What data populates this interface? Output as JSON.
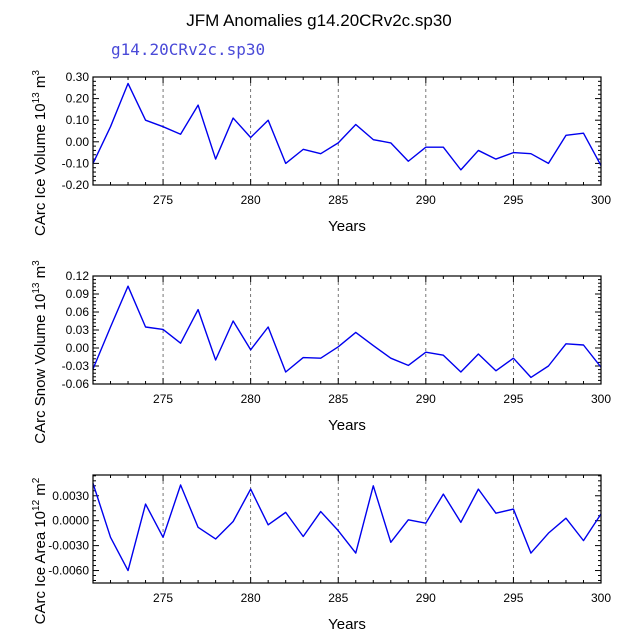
{
  "title": "JFM Anomalies g14.20CRv2c.sp30",
  "subtitle": "g14.20CRv2c.sp30",
  "colors": {
    "line": "#0000ee",
    "subtitle": "#4a4ad8",
    "axis": "#000000",
    "grid": "#555555"
  },
  "chart_data": [
    {
      "type": "line",
      "title": "",
      "xlabel": "Years",
      "ylabel": "CArc Ice Volume 10^13 m^3",
      "ylabel_parts": {
        "main": "CArc Ice Volume 10",
        "exp1": "13",
        "unit": " m",
        "exp2": "3"
      },
      "xlim": [
        271,
        300
      ],
      "ylim": [
        -0.2,
        0.3
      ],
      "yticks": [
        0.3,
        0.2,
        0.1,
        0.0,
        -0.1,
        -0.2
      ],
      "ytick_labels": [
        "0.30",
        "0.20",
        "0.10",
        "0.00",
        "-0.10",
        "-0.20"
      ],
      "xticks": [
        275,
        280,
        285,
        290,
        295,
        300
      ],
      "xtick_labels": [
        "275",
        "280",
        "285",
        "290",
        "295",
        "300"
      ],
      "grid_x": [
        275,
        280,
        285,
        290,
        295
      ],
      "series": [
        {
          "name": "CArc Ice Volume",
          "x": [
            271,
            272,
            273,
            274,
            275,
            276,
            277,
            278,
            279,
            280,
            281,
            282,
            283,
            284,
            285,
            286,
            287,
            288,
            289,
            290,
            291,
            292,
            293,
            294,
            295,
            296,
            297,
            298,
            299,
            300
          ],
          "values": [
            -0.1,
            0.07,
            0.27,
            0.1,
            0.07,
            0.035,
            0.17,
            -0.08,
            0.11,
            0.02,
            0.1,
            -0.1,
            -0.035,
            -0.055,
            -0.005,
            0.08,
            0.01,
            -0.005,
            -0.09,
            -0.025,
            -0.025,
            -0.13,
            -0.04,
            -0.08,
            -0.05,
            -0.055,
            -0.1,
            0.03,
            0.04,
            -0.11
          ]
        }
      ]
    },
    {
      "type": "line",
      "title": "",
      "xlabel": "Years",
      "ylabel": "CArc Snow Volume 10^13 m^3",
      "ylabel_parts": {
        "main": "CArc Snow Volume 10",
        "exp1": "13",
        "unit": " m",
        "exp2": "3"
      },
      "xlim": [
        271,
        300
      ],
      "ylim": [
        -0.06,
        0.12
      ],
      "yticks": [
        0.12,
        0.09,
        0.06,
        0.03,
        0.0,
        -0.03,
        -0.06
      ],
      "ytick_labels": [
        "0.12",
        "0.09",
        "0.06",
        "0.03",
        "0.00",
        "-0.03",
        "-0.06"
      ],
      "xticks": [
        275,
        280,
        285,
        290,
        295,
        300
      ],
      "xtick_labels": [
        "275",
        "280",
        "285",
        "290",
        "295",
        "300"
      ],
      "grid_x": [
        275,
        280,
        285,
        290,
        295
      ],
      "series": [
        {
          "name": "CArc Snow Volume",
          "x": [
            271,
            272,
            273,
            274,
            275,
            276,
            277,
            278,
            279,
            280,
            281,
            282,
            283,
            284,
            285,
            286,
            287,
            288,
            289,
            290,
            291,
            292,
            293,
            294,
            295,
            296,
            297,
            298,
            299,
            300
          ],
          "values": [
            -0.035,
            0.035,
            0.103,
            0.035,
            0.031,
            0.008,
            0.064,
            -0.02,
            0.045,
            -0.003,
            0.035,
            -0.04,
            -0.016,
            -0.017,
            0.002,
            0.026,
            0.004,
            -0.017,
            -0.029,
            -0.007,
            -0.012,
            -0.04,
            -0.01,
            -0.038,
            -0.017,
            -0.049,
            -0.03,
            0.007,
            0.005,
            -0.032
          ]
        }
      ]
    },
    {
      "type": "line",
      "title": "",
      "xlabel": "Years",
      "ylabel": "CArc Ice Area 10^12 m^2",
      "ylabel_parts": {
        "main": "CArc Ice Area 10",
        "exp1": "12",
        "unit": " m",
        "exp2": "2"
      },
      "xlim": [
        271,
        300
      ],
      "ylim": [
        -0.0075,
        0.0055
      ],
      "yticks": [
        0.003,
        0.0,
        -0.003,
        -0.006
      ],
      "ytick_labels": [
        "0.0030",
        "0.0000",
        "-0.0030",
        "-0.0060"
      ],
      "xticks": [
        275,
        280,
        285,
        290,
        295,
        300
      ],
      "xtick_labels": [
        "275",
        "280",
        "285",
        "290",
        "295",
        "300"
      ],
      "grid_x": [
        275,
        280,
        285,
        290,
        295
      ],
      "series": [
        {
          "name": "CArc Ice Area",
          "x": [
            271,
            272,
            273,
            274,
            275,
            276,
            277,
            278,
            279,
            280,
            281,
            282,
            283,
            284,
            285,
            286,
            287,
            288,
            289,
            290,
            291,
            292,
            293,
            294,
            295,
            296,
            297,
            298,
            299,
            300
          ],
          "values": [
            0.0045,
            -0.002,
            -0.006,
            0.002,
            -0.002,
            0.0043,
            -0.0008,
            -0.0022,
            -0.0001,
            0.0038,
            -0.0005,
            0.001,
            -0.0019,
            0.0011,
            -0.0012,
            -0.0039,
            0.0042,
            -0.0026,
            0.0001,
            -0.0003,
            0.0032,
            -0.0002,
            0.0038,
            0.0009,
            0.0014,
            -0.0039,
            -0.0015,
            0.0003,
            -0.0024,
            0.0008
          ]
        }
      ]
    }
  ]
}
